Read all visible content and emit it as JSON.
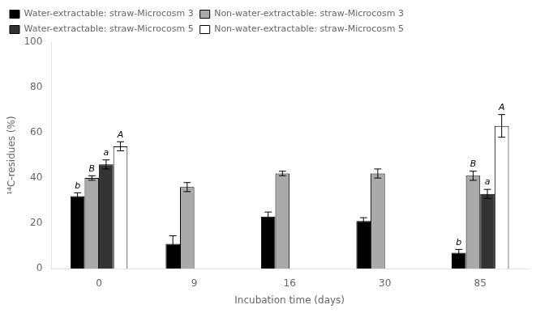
{
  "chart_data": {
    "type": "bar",
    "categories": [
      "0",
      "9",
      "16",
      "30",
      "85"
    ],
    "series": [
      {
        "name": "Water-extractable: straw-Microcosm 3",
        "color": "#000000",
        "values": [
          32,
          11,
          23,
          21,
          7
        ],
        "errors": [
          1.5,
          3.5,
          2,
          1.5,
          1.5
        ]
      },
      {
        "name": "Non-water-extractable: straw-Microcosm 3",
        "color": "#aaaaaa",
        "values": [
          40,
          36,
          42,
          42,
          41
        ],
        "errors": [
          1,
          2,
          1,
          2,
          2
        ]
      },
      {
        "name": "Water-extractable: straw-Microcosm 5",
        "color": "#333333",
        "values": [
          46,
          null,
          null,
          null,
          33
        ],
        "errors": [
          2,
          null,
          null,
          null,
          2
        ]
      },
      {
        "name": "Non-water-extractable: straw-Microcosm 5",
        "color": "#ffffff",
        "values": [
          54,
          null,
          null,
          null,
          63
        ],
        "errors": [
          2,
          null,
          null,
          null,
          5
        ]
      }
    ],
    "xlabel": "Incubation time (days)",
    "ylabel": "¹⁴C-residues (%)",
    "ylim": [
      0,
      100
    ],
    "yticks": [
      0,
      20,
      40,
      60,
      80,
      100
    ],
    "grid": false,
    "legend": "upper left",
    "annotations": [
      {
        "text": "b",
        "series": "Water-extractable: straw-Microcosm 3",
        "category": "0"
      },
      {
        "text": "B",
        "series": "Non-water-extractable: straw-Microcosm 3",
        "category": "0"
      },
      {
        "text": "a",
        "series": "Water-extractable: straw-Microcosm 5",
        "category": "0"
      },
      {
        "text": "A",
        "series": "Non-water-extractable: straw-Microcosm 5",
        "category": "0"
      },
      {
        "text": "b",
        "series": "Water-extractable: straw-Microcosm 3",
        "category": "85"
      },
      {
        "text": "B",
        "series": "Non-water-extractable: straw-Microcosm 3",
        "category": "85"
      },
      {
        "text": "a",
        "series": "Water-extractable: straw-Microcosm 5",
        "category": "85"
      },
      {
        "text": "A",
        "series": "Non-water-extractable: straw-Microcosm 5",
        "category": "85"
      }
    ]
  }
}
